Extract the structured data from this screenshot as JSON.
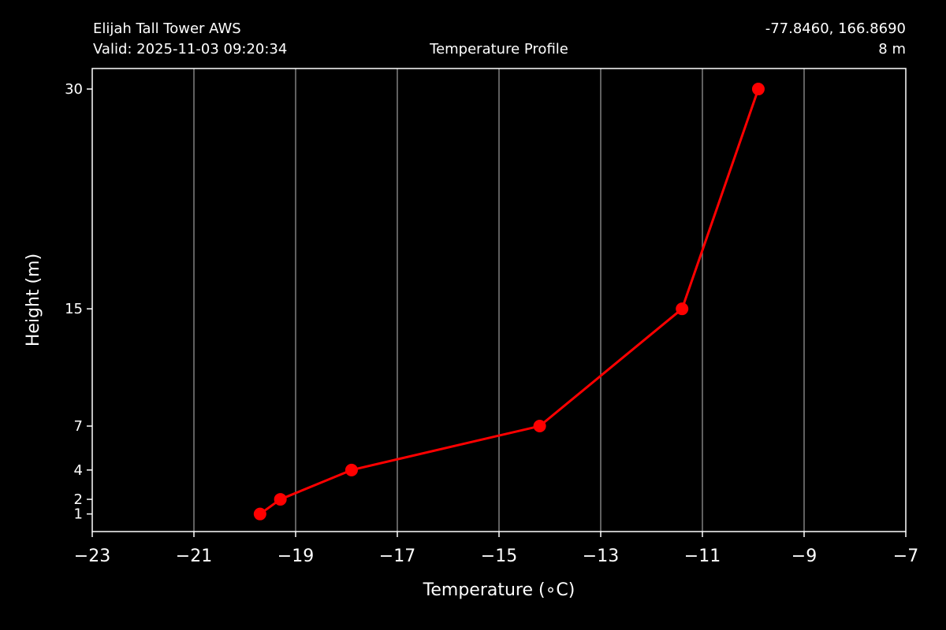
{
  "header": {
    "station": "Elijah Tall Tower AWS",
    "valid": "Valid: 2025-11-03 09:20:34",
    "title": "Temperature Profile",
    "coords": "-77.8460, 166.8690",
    "level": "8 m"
  },
  "chart_data": {
    "type": "line",
    "title": "Temperature Profile",
    "xlabel": "Temperature (∘C)",
    "ylabel": "Height (m)",
    "xlim": [
      -23,
      -7
    ],
    "ylim": [
      -0.2,
      31.4
    ],
    "x_ticks": [
      -23,
      -21,
      -19,
      -17,
      -15,
      -13,
      -11,
      -9,
      -7
    ],
    "x_tick_labels": [
      "−23",
      "−21",
      "−19",
      "−17",
      "−15",
      "−13",
      "−11",
      "−9",
      "−7"
    ],
    "y_ticks": [
      1,
      2,
      4,
      7,
      15,
      30
    ],
    "y_tick_labels": [
      "1",
      "2",
      "4",
      "7",
      "15",
      "30"
    ],
    "grid": "vertical",
    "series": [
      {
        "color": "#ff0000",
        "marker": "circle",
        "points": [
          {
            "x": -19.7,
            "y": 1
          },
          {
            "x": -19.3,
            "y": 2
          },
          {
            "x": -17.9,
            "y": 4
          },
          {
            "x": -14.2,
            "y": 7
          },
          {
            "x": -11.4,
            "y": 15
          },
          {
            "x": -9.9,
            "y": 30
          }
        ]
      }
    ]
  },
  "colors": {
    "background": "#000000",
    "foreground": "#ffffff",
    "grid": "#808080",
    "series": "#ff0000"
  }
}
